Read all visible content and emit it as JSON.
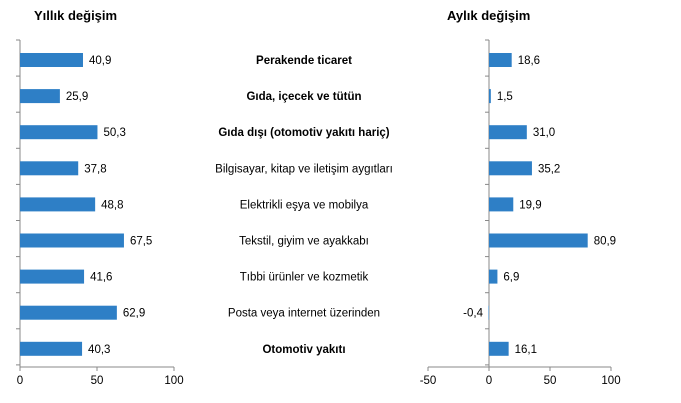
{
  "titles": {
    "left": "Yıllık değişim",
    "right": "Aylık değişim"
  },
  "chart_data": [
    {
      "type": "bar",
      "orientation": "horizontal",
      "title": "Yıllık değişim",
      "categories": [
        "Perakende ticaret",
        "Gıda, içecek ve tütün",
        "Gıda dışı (otomotiv yakıtı hariç)",
        "Bilgisayar, kitap ve iletişim aygıtları",
        "Elektrikli eşya ve mobilya",
        "Tekstil, giyim ve ayakkabı",
        "Tıbbi ürünler ve kozmetik",
        "Posta veya internet üzerinden",
        "Otomotiv yakıtı"
      ],
      "bold_categories": [
        "Perakende ticaret",
        "Gıda, içecek ve tütün",
        "Gıda dışı (otomotiv yakıtı hariç)",
        "Otomotiv yakıtı"
      ],
      "values": [
        40.9,
        25.9,
        50.3,
        37.8,
        48.8,
        67.5,
        41.6,
        62.9,
        40.3
      ],
      "value_labels": [
        "40,9",
        "25,9",
        "50,3",
        "37,8",
        "48,8",
        "67,5",
        "41,6",
        "62,9",
        "40,3"
      ],
      "xlim": [
        0,
        100
      ],
      "xticks": [
        0,
        50,
        100
      ],
      "bar_color": "#2e7fc6"
    },
    {
      "type": "bar",
      "orientation": "horizontal",
      "title": "Aylık değişim",
      "categories": [
        "Perakende ticaret",
        "Gıda, içecek ve tütün",
        "Gıda dışı (otomotiv yakıtı hariç)",
        "Bilgisayar, kitap ve iletişim aygıtları",
        "Elektrikli eşya ve mobilya",
        "Tekstil, giyim ve ayakkabı",
        "Tıbbi ürünler ve kozmetik",
        "Posta veya internet üzerinden",
        "Otomotiv yakıtı"
      ],
      "values": [
        18.6,
        1.5,
        31.0,
        35.2,
        19.9,
        80.9,
        6.9,
        -0.4,
        16.1
      ],
      "value_labels": [
        "18,6",
        "1,5",
        "31,0",
        "35,2",
        "19,9",
        "80,9",
        "6,9",
        "-0,4",
        "16,1"
      ],
      "xlim": [
        -50,
        100
      ],
      "xticks": [
        -50,
        0,
        50,
        100
      ],
      "bar_color": "#2e7fc6"
    }
  ]
}
